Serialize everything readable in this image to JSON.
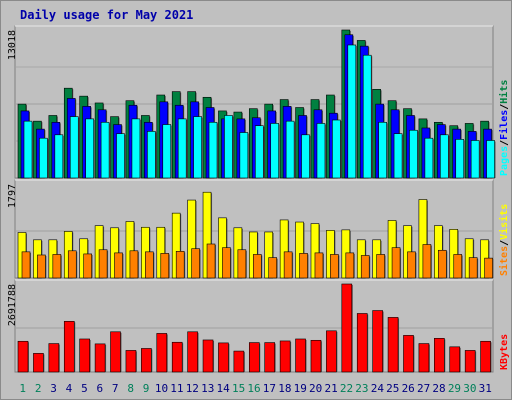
{
  "chart_data": [
    {
      "type": "bar",
      "title": "Daily usage for May 2021",
      "categories": [
        "1",
        "2",
        "3",
        "4",
        "5",
        "6",
        "7",
        "8",
        "9",
        "10",
        "11",
        "12",
        "13",
        "14",
        "15",
        "16",
        "17",
        "18",
        "19",
        "20",
        "21",
        "22",
        "23",
        "24",
        "25",
        "26",
        "27",
        "28",
        "29",
        "30",
        "31"
      ],
      "weekend_days": [
        "1",
        "2",
        "8",
        "9",
        "15",
        "16",
        "22",
        "23",
        "29",
        "30"
      ],
      "ymax_label": "13018",
      "ymax": 13018,
      "series": [
        {
          "name": "Hits",
          "color": "#008040",
          "values": [
            6500,
            5000,
            5500,
            7900,
            7200,
            6600,
            5400,
            6800,
            5500,
            7300,
            7600,
            7600,
            7100,
            5900,
            5800,
            6100,
            6500,
            6900,
            6200,
            6900,
            7300,
            13018,
            12100,
            7800,
            6800,
            6100,
            5200,
            4900,
            4600,
            4800,
            5000
          ]
        },
        {
          "name": "Files",
          "color": "#0000ff",
          "values": [
            5900,
            4300,
            4900,
            7000,
            6300,
            6000,
            4700,
            6400,
            4900,
            6700,
            6400,
            6700,
            6200,
            5200,
            5200,
            5300,
            5900,
            6300,
            5500,
            6000,
            5700,
            12600,
            11600,
            6500,
            6000,
            5500,
            4400,
            4700,
            4300,
            4100,
            4300
          ]
        },
        {
          "name": "Pages",
          "color": "#00ffff",
          "values": [
            5000,
            3500,
            3800,
            5400,
            5200,
            4900,
            3900,
            5200,
            4100,
            4700,
            5200,
            5400,
            4900,
            5500,
            4000,
            4600,
            4800,
            5000,
            3800,
            4800,
            5100,
            11700,
            10800,
            4900,
            3900,
            4200,
            3500,
            3800,
            3400,
            3300,
            3300
          ]
        }
      ]
    },
    {
      "type": "bar",
      "ymax_label": "1797",
      "ymax": 1797,
      "series": [
        {
          "name": "Visits",
          "color": "#ffff00",
          "values": [
            870,
            730,
            730,
            890,
            750,
            1000,
            960,
            1080,
            970,
            970,
            1240,
            1490,
            1640,
            1150,
            960,
            880,
            880,
            1110,
            1070,
            1040,
            910,
            920,
            730,
            730,
            1100,
            1000,
            1500,
            1000,
            930,
            750,
            730
          ]
        },
        {
          "name": "Sites",
          "color": "#ff8000",
          "values": [
            500,
            440,
            450,
            520,
            460,
            540,
            480,
            520,
            500,
            470,
            510,
            560,
            650,
            580,
            540,
            450,
            390,
            500,
            470,
            480,
            450,
            480,
            430,
            450,
            580,
            500,
            640,
            530,
            450,
            390,
            380
          ]
        }
      ]
    },
    {
      "type": "bar",
      "ymax_label": "2691788",
      "ymax": 2691788,
      "series": [
        {
          "name": "KBytes",
          "color": "#ff0000",
          "values": [
            940000,
            570000,
            870000,
            1550000,
            1010000,
            860000,
            1230000,
            660000,
            720000,
            1180000,
            910000,
            1230000,
            980000,
            890000,
            640000,
            900000,
            900000,
            950000,
            1010000,
            970000,
            1260000,
            2691788,
            1790000,
            1880000,
            1670000,
            1120000,
            870000,
            1030000,
            770000,
            660000,
            940000
          ]
        }
      ]
    }
  ],
  "legend_separator": "/"
}
